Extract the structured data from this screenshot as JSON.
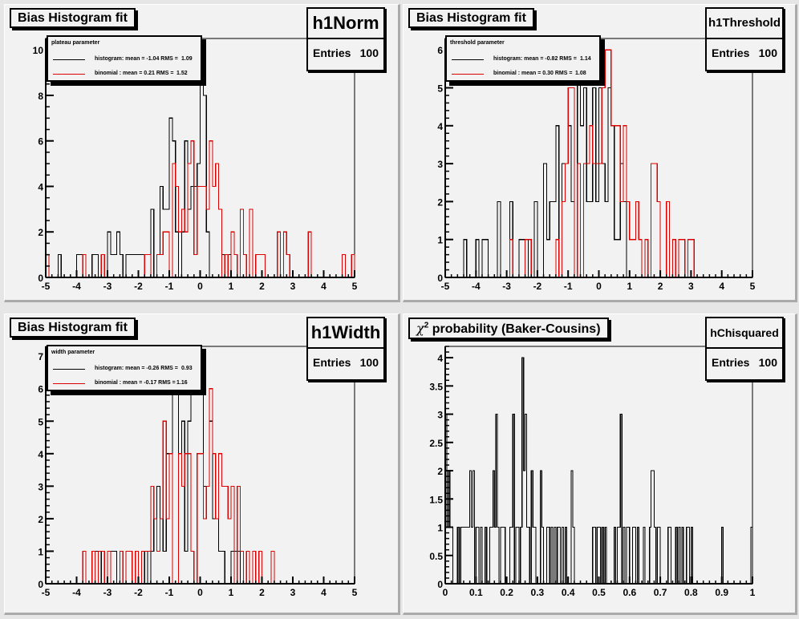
{
  "colors": {
    "histogram": "#000000",
    "binomial": "#dd0000",
    "pad_bg": "#f2f2f2"
  },
  "chart_data": [
    {
      "type": "bar",
      "id": "h1Norm",
      "title": "Bias Histogram fit",
      "stats": {
        "name": "h1Norm",
        "entries_label": "Entries",
        "entries": "100"
      },
      "legend": {
        "header": "plateau parameter",
        "entries": [
          {
            "label": "histogram: mean = -1.04 RMS =",
            "rms": "1.09",
            "color": "#000000"
          },
          {
            "label": "binomial : mean = 0.21 RMS =",
            "rms": "1.52",
            "color": "#dd0000"
          }
        ]
      },
      "xlim": [
        -5,
        5
      ],
      "ylim": [
        0,
        10.5
      ],
      "xticks": [
        "-5",
        "-4",
        "-3",
        "-2",
        "-1",
        "0",
        "1",
        "2",
        "3",
        "4",
        "5"
      ],
      "yticks": [
        "0",
        "2",
        "4",
        "6",
        "8",
        "10"
      ],
      "series": [
        {
          "name": "histogram",
          "values": [
            1,
            0,
            0,
            0,
            1,
            0,
            0,
            0,
            0,
            0,
            1,
            1,
            1,
            0,
            0,
            1,
            1,
            0,
            1,
            0,
            2,
            1,
            1,
            2,
            1,
            0,
            1,
            1,
            1,
            1,
            1,
            1,
            1,
            1,
            3,
            0,
            1,
            4,
            3,
            3,
            7,
            6,
            2,
            0,
            2,
            6,
            3,
            4,
            4,
            5,
            10,
            8,
            2,
            0,
            0,
            0,
            0,
            1,
            0,
            1,
            0,
            0,
            0,
            0,
            0,
            0,
            0,
            0,
            0,
            0,
            0,
            0,
            0,
            0,
            0,
            0,
            0,
            0,
            0,
            0,
            0,
            0,
            0,
            0,
            0,
            0,
            0,
            0,
            0,
            0,
            0,
            0,
            0,
            0,
            0,
            0,
            0,
            0,
            0,
            0
          ]
        },
        {
          "name": "binomial",
          "values": [
            1,
            0,
            0,
            0,
            0,
            0,
            0,
            0,
            0,
            0,
            0,
            0,
            1,
            0,
            0,
            0,
            0,
            0,
            1,
            0,
            0,
            0,
            0,
            0,
            0,
            0,
            0,
            0,
            0,
            0,
            0,
            0,
            1,
            1,
            0,
            0,
            1,
            1,
            2,
            2,
            0,
            5,
            4,
            2,
            3,
            2,
            5,
            6,
            1,
            4,
            4,
            4,
            3,
            6,
            4,
            5,
            3,
            0,
            1,
            0,
            2,
            1,
            0,
            3,
            1,
            0,
            3,
            0,
            1,
            1,
            1,
            0,
            0,
            0,
            0,
            2,
            0,
            2,
            1,
            0,
            0,
            0,
            0,
            0,
            0,
            2,
            0,
            0,
            0,
            0,
            0,
            0,
            0,
            0,
            0,
            0,
            1,
            0,
            0,
            1
          ]
        }
      ]
    },
    {
      "type": "bar",
      "id": "h1Threshold",
      "title": "Bias Histogram fit",
      "stats": {
        "name": "h1Threshold",
        "entries_label": "Entries",
        "entries": "100"
      },
      "legend": {
        "header": "threshold parameter",
        "entries": [
          {
            "label": "histogram: mean = -0.82 RMS =",
            "rms": "1.14",
            "color": "#000000"
          },
          {
            "label": "binomial : mean = 0.30 RMS =",
            "rms": "1.08",
            "color": "#dd0000"
          }
        ]
      },
      "xlim": [
        -5,
        5
      ],
      "ylim": [
        0,
        6.3
      ],
      "xticks": [
        "-5",
        "-4",
        "-3",
        "-2",
        "-1",
        "0",
        "1",
        "2",
        "3",
        "4",
        "5"
      ],
      "yticks": [
        "0",
        "1",
        "2",
        "3",
        "4",
        "5",
        "6"
      ],
      "series": [
        {
          "name": "histogram",
          "values": [
            0,
            0,
            0,
            0,
            0,
            0,
            1,
            0,
            0,
            0,
            1,
            0,
            1,
            1,
            0,
            0,
            0,
            2,
            0,
            0,
            0,
            2,
            0,
            0,
            1,
            1,
            0,
            1,
            0,
            2,
            0,
            0,
            3,
            1,
            2,
            2,
            4,
            0,
            3,
            3,
            4,
            2,
            0,
            6,
            4,
            5,
            2,
            2,
            5,
            2,
            5,
            3,
            2,
            5,
            4,
            1,
            1,
            3,
            2,
            0,
            0,
            0,
            0,
            0,
            0,
            0,
            0,
            0,
            0,
            0,
            0,
            0,
            0,
            0,
            0,
            0,
            0,
            0,
            0,
            0,
            0,
            0,
            0,
            0,
            0,
            0,
            0,
            0,
            0,
            0,
            0,
            0,
            0,
            0,
            0,
            0,
            0,
            0,
            0,
            0
          ]
        },
        {
          "name": "binomial",
          "values": [
            0,
            0,
            0,
            0,
            0,
            0,
            0,
            0,
            0,
            0,
            0,
            0,
            0,
            0,
            0,
            0,
            0,
            0,
            0,
            0,
            0,
            1,
            0,
            0,
            0,
            0,
            1,
            1,
            0,
            0,
            0,
            0,
            0,
            0,
            0,
            0,
            1,
            0,
            2,
            3,
            5,
            5,
            0,
            3,
            0,
            3,
            3,
            4,
            3,
            3,
            3,
            5,
            6,
            6,
            4,
            4,
            4,
            2,
            4,
            2,
            1,
            1,
            2,
            1,
            0,
            1,
            0,
            3,
            3,
            2,
            0,
            0,
            2,
            0,
            1,
            0,
            1,
            1,
            0,
            1,
            1,
            0,
            0,
            0,
            0,
            0,
            0,
            0,
            0,
            0,
            0,
            0,
            0,
            0,
            0,
            0,
            0,
            0,
            0,
            0
          ]
        }
      ]
    },
    {
      "type": "bar",
      "id": "h1Width",
      "title": "Bias Histogram fit",
      "stats": {
        "name": "h1Width",
        "entries_label": "Entries",
        "entries": "100"
      },
      "legend": {
        "header": "width parameter",
        "entries": [
          {
            "label": "histogram: mean = -0.26 RMS =",
            "rms": "0.93",
            "color": "#000000"
          },
          {
            "label": "binomial : mean = -0.17 RMS =",
            "rms": "1.16",
            "color": "#dd0000"
          }
        ]
      },
      "xlim": [
        -5,
        5
      ],
      "ylim": [
        0,
        7.3
      ],
      "xticks": [
        "-5",
        "-4",
        "-3",
        "-2",
        "-1",
        "0",
        "1",
        "2",
        "3",
        "4",
        "5"
      ],
      "yticks": [
        "0",
        "1",
        "2",
        "3",
        "4",
        "5",
        "6",
        "7"
      ],
      "series": [
        {
          "name": "histogram",
          "values": [
            0,
            0,
            0,
            0,
            0,
            0,
            0,
            0,
            0,
            0,
            0,
            0,
            0,
            0,
            0,
            0,
            1,
            0,
            1,
            0,
            0,
            1,
            1,
            0,
            0,
            0,
            0,
            0,
            0,
            1,
            0,
            0,
            1,
            0,
            1,
            2,
            3,
            2,
            1,
            4,
            4,
            6,
            6,
            4,
            5,
            1,
            5,
            6,
            7,
            6,
            7,
            3,
            3,
            5,
            2,
            2,
            1,
            1,
            0,
            0,
            1,
            1,
            1,
            0,
            0,
            0,
            0,
            0,
            0,
            0,
            0,
            0,
            0,
            0,
            0,
            0,
            0,
            0,
            0,
            0,
            0,
            0,
            0,
            0,
            0,
            0,
            0,
            0,
            0,
            0,
            0,
            0,
            0,
            0,
            0,
            0,
            0,
            0,
            0,
            0
          ]
        },
        {
          "name": "binomial",
          "values": [
            0,
            0,
            0,
            0,
            0,
            0,
            0,
            0,
            0,
            0,
            0,
            0,
            1,
            0,
            0,
            1,
            0,
            1,
            1,
            0,
            1,
            0,
            0,
            0,
            1,
            0,
            1,
            1,
            0,
            1,
            0,
            1,
            1,
            1,
            3,
            2,
            1,
            2,
            5,
            2,
            4,
            0,
            0,
            4,
            3,
            4,
            4,
            1,
            0,
            4,
            4,
            2,
            3,
            6,
            4,
            2,
            4,
            3,
            3,
            2,
            3,
            0,
            3,
            1,
            0,
            1,
            0,
            1,
            0,
            1,
            0,
            0,
            0,
            1,
            0,
            0,
            0,
            0,
            0,
            0,
            0,
            0,
            0,
            0,
            0,
            0,
            0,
            0,
            0,
            0,
            0,
            0,
            0,
            0,
            0,
            0,
            0,
            0,
            0,
            0
          ]
        }
      ]
    },
    {
      "type": "bar",
      "id": "hChisquared",
      "title": "χ² probability (Baker-Cousins)",
      "title_main": "χ",
      "title_sup": "2",
      "title_rest": " probability (Baker-Cousins)",
      "stats": {
        "name": "hChisquared",
        "entries_label": "Entries",
        "entries": "100"
      },
      "xlim": [
        0,
        1
      ],
      "ylim": [
        0,
        4.2
      ],
      "xticks": [
        "0",
        "0.1",
        "0.2",
        "0.3",
        "0.4",
        "0.5",
        "0.6",
        "0.7",
        "0.8",
        "0.9",
        "1"
      ],
      "yticks": [
        "0",
        "0.5",
        "1",
        "1.5",
        "2",
        "2.5",
        "3",
        "3.5",
        "4"
      ],
      "series": [
        {
          "name": "histogram",
          "values": [
            3,
            1,
            2,
            1,
            1,
            0,
            0,
            0,
            1,
            0,
            1,
            1,
            1,
            1,
            1,
            1,
            2,
            1,
            2,
            0,
            1,
            1,
            0,
            1,
            0,
            0,
            1,
            0,
            0,
            1,
            1,
            2,
            1,
            3,
            1,
            0,
            1,
            1,
            1,
            0,
            0,
            0,
            1,
            1,
            3,
            0,
            1,
            1,
            0,
            1,
            4,
            2,
            3,
            1,
            1,
            0,
            2,
            1,
            1,
            0,
            0,
            0,
            2,
            1,
            0,
            0,
            1,
            1,
            0,
            1,
            0,
            1,
            0,
            1,
            1,
            0,
            1,
            0,
            1,
            0,
            0,
            0,
            2,
            1,
            0,
            0,
            0,
            0,
            0,
            0,
            0,
            0,
            0,
            0,
            0,
            0,
            1,
            1,
            0,
            1,
            1,
            0,
            1,
            0,
            1,
            0,
            0,
            0,
            0,
            0,
            1,
            0,
            1,
            1,
            3,
            0,
            1,
            0,
            1,
            1,
            0,
            0,
            1,
            1,
            0,
            1,
            0,
            0,
            0,
            1,
            0,
            0,
            0,
            1,
            2,
            2,
            1,
            0,
            1,
            1,
            0,
            0,
            0,
            0,
            0,
            1,
            1,
            0,
            0,
            0,
            1,
            0,
            1,
            0,
            1,
            0,
            0,
            1,
            1,
            0,
            1,
            0,
            0,
            0,
            0,
            0,
            0,
            0,
            0,
            0,
            0,
            0,
            0,
            0,
            0,
            0,
            0,
            0,
            0,
            0,
            1,
            0,
            0,
            0,
            0,
            0,
            0,
            0,
            0,
            0,
            0,
            0,
            0,
            0,
            0,
            0,
            0,
            0,
            0,
            1
          ]
        }
      ]
    }
  ]
}
